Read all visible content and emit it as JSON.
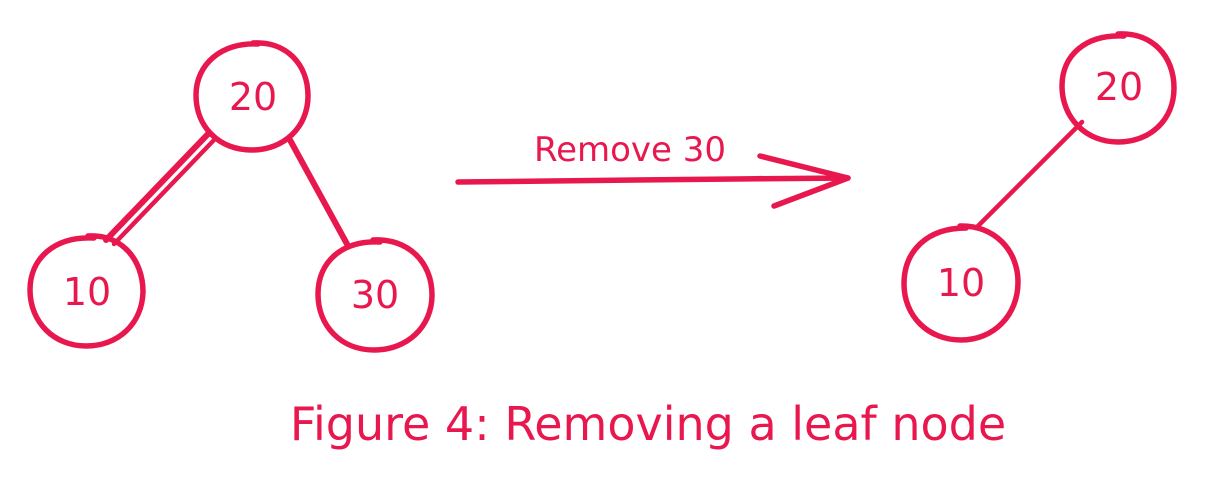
{
  "before_tree": {
    "root": "20",
    "left_child": "10",
    "right_child": "30"
  },
  "operation": {
    "label": "Remove 30"
  },
  "after_tree": {
    "root": "20",
    "left_child": "10"
  },
  "caption": "Figure 4: Removing a leaf node",
  "colors": {
    "ink": "#e8184f",
    "background": "#ffffff"
  }
}
